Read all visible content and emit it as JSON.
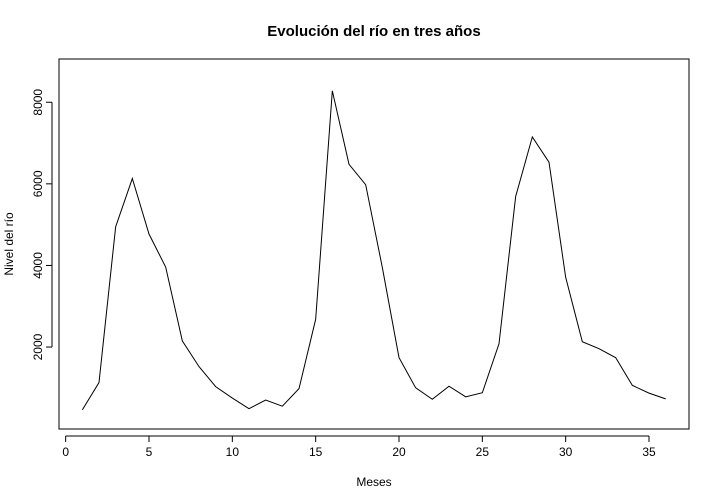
{
  "chart_data": {
    "type": "line",
    "title": "Evolución del río en tres años",
    "xlabel": "Meses",
    "ylabel": "Nivel del río",
    "x": [
      1,
      2,
      3,
      4,
      5,
      6,
      7,
      8,
      9,
      10,
      11,
      12,
      13,
      14,
      15,
      16,
      17,
      18,
      19,
      20,
      21,
      22,
      23,
      24,
      25,
      26,
      27,
      28,
      29,
      30,
      31,
      32,
      33,
      34,
      35,
      36
    ],
    "series": [
      {
        "values": [
          460,
          1130,
          4950,
          6130,
          4770,
          3960,
          2150,
          1520,
          1030,
          750,
          490,
          700,
          550,
          980,
          2680,
          8280,
          6480,
          5980,
          3950,
          1740,
          1000,
          720,
          1040,
          780,
          880,
          2080,
          5690,
          7150,
          6530,
          3710,
          2130,
          1960,
          1740,
          1060,
          870,
          730
        ]
      }
    ],
    "xlim": [
      -0.4,
      37.4
    ],
    "ylim": [
      -9,
      9060
    ],
    "xticks": [
      0,
      5,
      10,
      15,
      20,
      25,
      30,
      35
    ],
    "xtick_labels": [
      "0",
      "5",
      "10",
      "15",
      "20",
      "25",
      "30",
      "35"
    ],
    "yticks": [
      2000,
      4000,
      6000,
      8000
    ],
    "ytick_labels": [
      "2000",
      "4000",
      "6000",
      "8000"
    ],
    "grid": false,
    "line_color": "#000000"
  }
}
